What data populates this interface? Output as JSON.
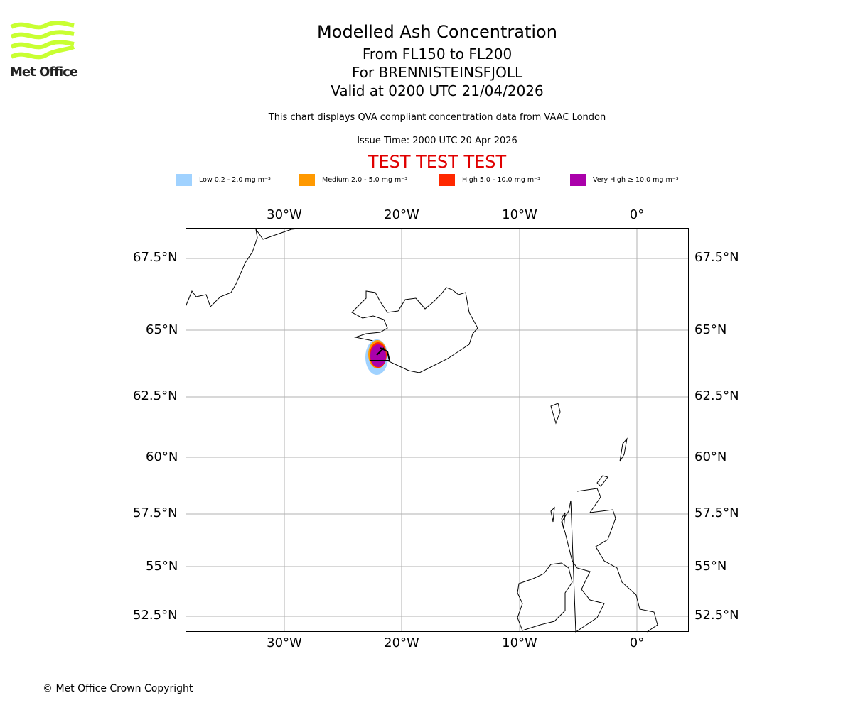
{
  "logo": {
    "text": "Met Office",
    "color": "#c8ff32"
  },
  "header": {
    "title": "Modelled Ash Concentration",
    "levels": "From FL150 to FL200",
    "volcano": "For BRENNISTEINSFJOLL",
    "valid": "Valid at 0200 UTC 21/04/2026",
    "subtitle": "This chart displays QVA compliant concentration data from VAAC London",
    "issue": "Issue Time: 2000 UTC 20 Apr 2026",
    "test": "TEST TEST TEST"
  },
  "legend": [
    {
      "label": "Low 0.2 - 2.0 mg m⁻³",
      "color": "#a0d2ff"
    },
    {
      "label": "Medium 2.0 - 5.0 mg m⁻³",
      "color": "#ff9900"
    },
    {
      "label": "High 5.0 - 10.0 mg m⁻³",
      "color": "#ff2800"
    },
    {
      "label": "Very High ≥ 10.0 mg m⁻³",
      "color": "#aa00aa"
    }
  ],
  "map": {
    "lon_labels": [
      "30°W",
      "20°W",
      "10°W",
      "0°"
    ],
    "lat_labels": [
      "67.5°N",
      "65°N",
      "62.5°N",
      "60°N",
      "57.5°N",
      "55°N",
      "52.5°N"
    ]
  },
  "footer": {
    "copyright": "© Met Office Crown Copyright"
  }
}
